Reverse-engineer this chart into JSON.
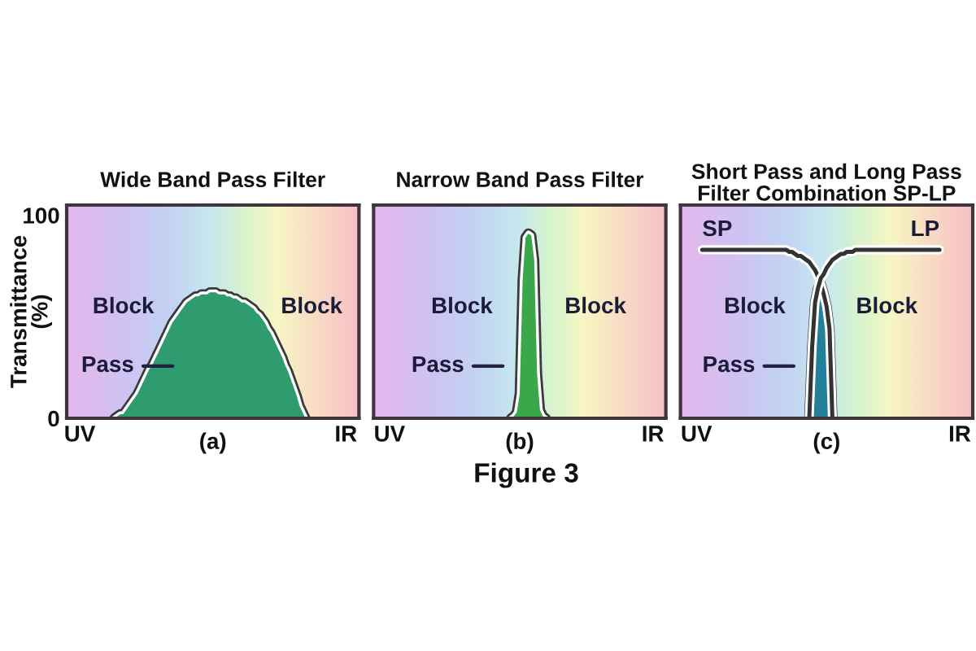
{
  "chart_data": [
    {
      "type": "area",
      "title": "Wide Band Pass Filter",
      "xlabel": "(a)",
      "ylabel": "Transmittance\n(%)",
      "ylim": [
        0,
        105
      ],
      "yticks": [
        0,
        100
      ],
      "categories": [
        null,
        null,
        null,
        null,
        "UV",
        null,
        null,
        null,
        null,
        null,
        null,
        null,
        null,
        null,
        null,
        null,
        null,
        null,
        null,
        null,
        null,
        null,
        null,
        null,
        null,
        null,
        null,
        null,
        null,
        null,
        null,
        null,
        null,
        null,
        null,
        null,
        null,
        null,
        null,
        null,
        null,
        null,
        null,
        null,
        null,
        null,
        null,
        null,
        null,
        null,
        null,
        null,
        null,
        null,
        null,
        null,
        null,
        null,
        null,
        null,
        null,
        null,
        null,
        null,
        null,
        null,
        null,
        null,
        null,
        null,
        null,
        null,
        null,
        null,
        null,
        null,
        null,
        null,
        null,
        null,
        null,
        null,
        null,
        null,
        null,
        null,
        null,
        null,
        null,
        null,
        null,
        null,
        null,
        null,
        null,
        null,
        "IR",
        null,
        null,
        null,
        null
      ],
      "series": [
        {
          "color": "#2e9c6e",
          "values": [
            null,
            null,
            null,
            null,
            null,
            null,
            null,
            null,
            null,
            null,
            null,
            null,
            null,
            null,
            null,
            null,
            0,
            1,
            2,
            2,
            4,
            6,
            8,
            10,
            12,
            15,
            18,
            21,
            24,
            26,
            29,
            32,
            35,
            38,
            41,
            44,
            47,
            49,
            51,
            53,
            55,
            57,
            58,
            59,
            60,
            60,
            61,
            61,
            61,
            62,
            62,
            62,
            61,
            61,
            61,
            60,
            60,
            59,
            59,
            58,
            57,
            57,
            56,
            55,
            54,
            52,
            51,
            49,
            47,
            44,
            42,
            39,
            36,
            33,
            30,
            26,
            23,
            19,
            15,
            11,
            6,
            3,
            0,
            null,
            null,
            null,
            null,
            null,
            null,
            null,
            null,
            null,
            null,
            null,
            null,
            null,
            null,
            null,
            null,
            null,
            null
          ]
        }
      ],
      "annotations": [
        "Block",
        "Block",
        "Pass"
      ]
    },
    {
      "type": "area",
      "title": "Narrow Band Pass Filter",
      "xlabel": "(b)",
      "ylim": [
        0,
        105
      ],
      "tick_labels": "x",
      "categories": [
        null,
        null,
        null,
        null,
        null,
        "UV",
        null,
        null,
        null,
        null,
        null,
        null,
        null,
        null,
        null,
        null,
        null,
        null,
        null,
        null,
        null,
        null,
        null,
        null,
        null,
        null,
        null,
        null,
        null,
        null,
        null,
        null,
        null,
        null,
        null,
        null,
        null,
        null,
        null,
        null,
        null,
        null,
        null,
        null,
        null,
        null,
        null,
        null,
        null,
        null,
        null,
        null,
        null,
        null,
        null,
        null,
        null,
        null,
        null,
        null,
        null,
        null,
        null,
        null,
        null,
        null,
        null,
        null,
        null,
        null,
        null,
        null,
        null,
        null,
        null,
        null,
        null,
        null,
        null,
        null,
        null,
        null,
        null,
        null,
        null,
        null,
        null,
        null,
        null,
        null,
        null,
        null,
        null,
        null,
        null,
        null,
        "IR",
        null,
        null,
        null,
        null
      ],
      "series": [
        {
          "color": "#3aa84a",
          "values": [
            null,
            null,
            null,
            null,
            null,
            null,
            null,
            null,
            null,
            null,
            null,
            null,
            null,
            null,
            null,
            null,
            null,
            null,
            null,
            null,
            null,
            null,
            null,
            null,
            null,
            null,
            null,
            null,
            null,
            null,
            null,
            null,
            null,
            null,
            null,
            null,
            null,
            null,
            null,
            null,
            null,
            null,
            null,
            null,
            null,
            null,
            null,
            0,
            1,
            3,
            12,
            68,
            89,
            91,
            90,
            78,
            22,
            4,
            1,
            0,
            null,
            null,
            null,
            null,
            null,
            null,
            null,
            null,
            null,
            null,
            null,
            null,
            null,
            null,
            null,
            null,
            null,
            null,
            null,
            null,
            null,
            null,
            null,
            null,
            null,
            null,
            null,
            null,
            null,
            null,
            null,
            null,
            null,
            null,
            null,
            null,
            null,
            null,
            null,
            null,
            null
          ]
        }
      ],
      "annotations": [
        "Block",
        "Block",
        "Pass",
        "Figure 3"
      ]
    },
    {
      "type": "line",
      "title": "Short Pass and Long Pass\nFilter Combination SP-LP",
      "xlabel": "(c)",
      "ylim": [
        0,
        105
      ],
      "tick_labels": "x",
      "categories": [
        null,
        null,
        null,
        null,
        null,
        "UV",
        null,
        null,
        null,
        null,
        null,
        null,
        null,
        null,
        null,
        null,
        null,
        null,
        null,
        null,
        null,
        null,
        null,
        null,
        null,
        null,
        null,
        null,
        null,
        null,
        null,
        null,
        null,
        null,
        null,
        null,
        null,
        null,
        null,
        null,
        null,
        null,
        null,
        null,
        null,
        null,
        null,
        null,
        null,
        null,
        null,
        null,
        null,
        null,
        null,
        null,
        null,
        null,
        null,
        null,
        null,
        null,
        null,
        null,
        null,
        null,
        null,
        null,
        null,
        null,
        null,
        null,
        null,
        null,
        null,
        null,
        null,
        null,
        null,
        null,
        null,
        null,
        null,
        null,
        null,
        null,
        null,
        null,
        null,
        null,
        null,
        null,
        null,
        null,
        null,
        null,
        "IR",
        null,
        null,
        null,
        null
      ],
      "series": [
        {
          "type": "area",
          "color": "#22809a",
          "values": [
            null,
            null,
            null,
            null,
            null,
            null,
            null,
            null,
            null,
            null,
            null,
            null,
            null,
            null,
            null,
            null,
            null,
            null,
            null,
            null,
            null,
            null,
            null,
            null,
            null,
            null,
            null,
            null,
            null,
            null,
            null,
            null,
            null,
            null,
            null,
            null,
            null,
            null,
            null,
            null,
            null,
            null,
            null,
            null,
            0,
            35,
            57,
            64,
            66,
            61,
            55,
            44,
            0,
            null,
            null,
            null,
            null,
            null,
            null,
            null,
            null,
            null,
            null,
            null,
            null,
            null,
            null,
            null,
            null,
            null,
            null,
            null,
            null,
            null,
            null,
            null,
            null,
            null,
            null,
            null,
            null,
            null,
            null,
            null,
            null,
            null,
            null,
            null,
            null,
            null,
            null,
            null,
            null,
            null,
            null,
            null,
            null,
            null,
            null,
            null,
            null
          ]
        },
        {
          "name": "SP",
          "color": "#333333",
          "values": [
            null,
            null,
            null,
            null,
            null,
            null,
            null,
            83,
            83,
            83,
            83,
            83,
            83,
            83,
            83,
            83,
            83,
            83,
            83,
            83,
            83,
            83,
            83,
            83,
            83,
            83,
            83,
            83,
            83,
            83,
            83,
            83,
            83,
            83,
            83,
            83,
            83,
            82,
            82,
            81,
            80,
            80,
            79,
            78,
            77,
            75,
            73,
            70,
            66,
            61,
            55,
            44,
            0,
            null,
            null,
            null,
            null,
            null,
            null,
            null,
            null,
            null,
            null,
            null,
            null,
            null,
            null,
            null,
            null,
            null,
            null,
            null,
            null,
            null,
            null,
            null,
            null,
            null,
            null,
            null,
            null,
            null,
            null,
            null,
            null,
            null,
            null,
            null,
            null,
            null,
            null,
            null,
            null,
            null,
            null,
            null,
            null,
            null,
            null,
            null,
            null
          ]
        },
        {
          "name": "LP",
          "color": "#333333",
          "values": [
            null,
            null,
            null,
            null,
            null,
            null,
            null,
            null,
            null,
            null,
            null,
            null,
            null,
            null,
            null,
            null,
            null,
            null,
            null,
            null,
            null,
            null,
            null,
            null,
            null,
            null,
            null,
            null,
            null,
            null,
            null,
            null,
            null,
            null,
            null,
            null,
            null,
            null,
            null,
            null,
            null,
            null,
            null,
            null,
            0,
            35,
            57,
            64,
            69,
            71,
            74,
            76,
            78,
            79,
            80,
            81,
            81,
            82,
            82,
            82,
            83,
            83,
            83,
            83,
            83,
            83,
            83,
            83,
            83,
            83,
            83,
            83,
            83,
            83,
            83,
            83,
            83,
            83,
            83,
            83,
            83,
            83,
            83,
            83,
            83,
            83,
            83,
            83,
            83,
            83,
            null,
            null,
            null,
            null,
            null,
            null,
            null,
            null,
            null,
            null,
            null
          ]
        }
      ],
      "annotations": [
        "Block",
        "Block",
        "Pass"
      ]
    }
  ]
}
